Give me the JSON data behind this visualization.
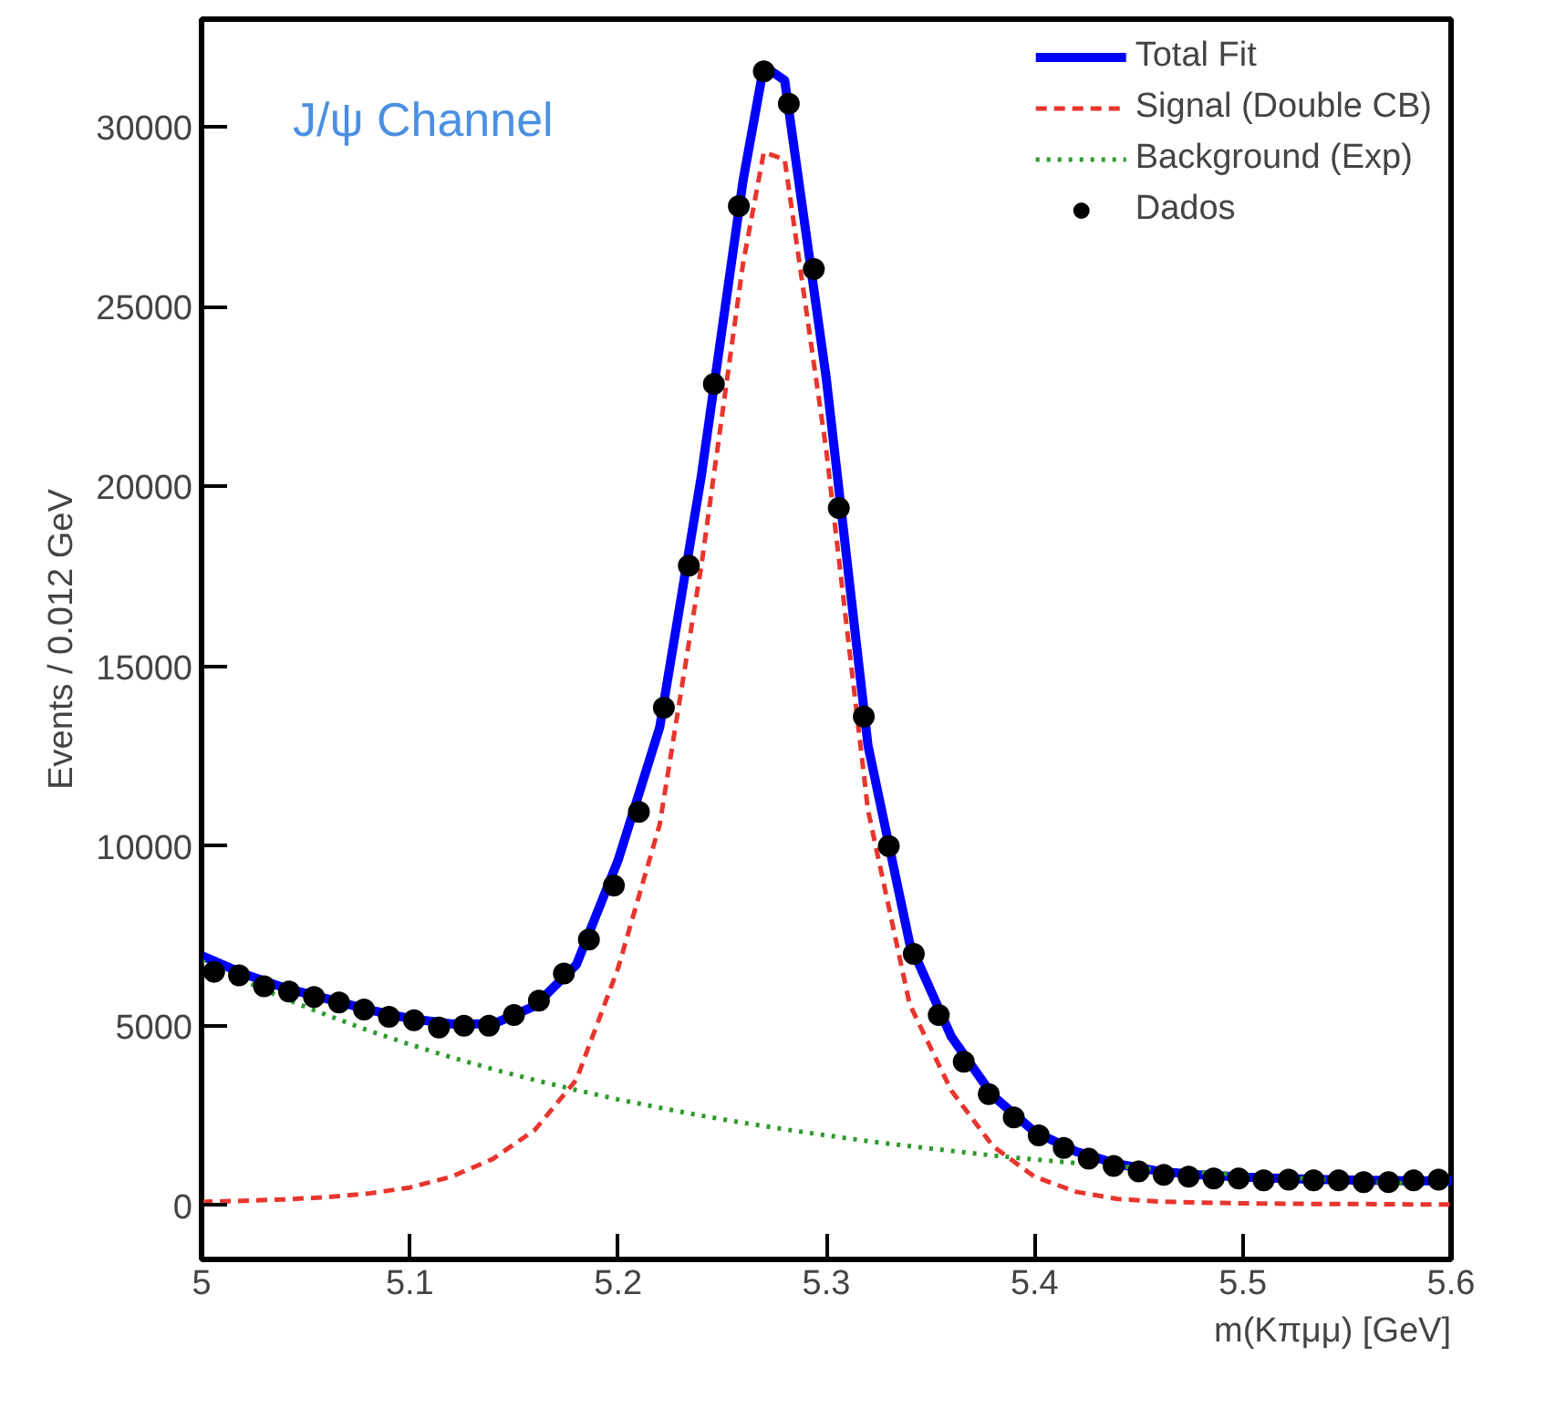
{
  "chart_data": {
    "type": "scatter",
    "xlabel": "m(Kπμμ) [GeV]",
    "ylabel": "Events / 0.012 GeV",
    "annotations": [
      "J/ψ Channel"
    ],
    "xlim": [
      5.0,
      5.6
    ],
    "ylim": [
      -1500,
      33000
    ],
    "xticks": [
      5.0,
      5.1,
      5.2,
      5.3,
      5.4,
      5.5,
      5.6
    ],
    "yticks": [
      0,
      5000,
      10000,
      15000,
      20000,
      25000,
      30000
    ],
    "grid": false,
    "legend": "top right",
    "series": [
      {
        "name": "Total Fit",
        "type": "line",
        "line_style": "solid",
        "color": "#0000ff",
        "x": [
          5.0,
          5.02,
          5.04,
          5.06,
          5.08,
          5.1,
          5.12,
          5.14,
          5.16,
          5.18,
          5.2,
          5.22,
          5.24,
          5.26,
          5.27,
          5.28,
          5.3,
          5.32,
          5.34,
          5.36,
          5.38,
          5.4,
          5.42,
          5.44,
          5.46,
          5.48,
          5.5,
          5.52,
          5.54,
          5.56,
          5.58,
          5.6
        ],
        "values": [
          6950,
          6450,
          6050,
          5750,
          5450,
          5200,
          5050,
          5050,
          5550,
          6700,
          9600,
          13300,
          20300,
          28500,
          31700,
          31300,
          23000,
          12800,
          7300,
          4700,
          3050,
          2050,
          1500,
          1150,
          950,
          850,
          790,
          750,
          720,
          700,
          690,
          680
        ]
      },
      {
        "name": "Signal (Double CB)",
        "type": "line",
        "line_style": "dashed",
        "color": "#e8352e",
        "x": [
          5.0,
          5.02,
          5.04,
          5.06,
          5.08,
          5.1,
          5.12,
          5.14,
          5.16,
          5.18,
          5.2,
          5.22,
          5.24,
          5.26,
          5.27,
          5.28,
          5.3,
          5.32,
          5.34,
          5.36,
          5.38,
          5.4,
          5.42,
          5.44,
          5.46,
          5.48,
          5.5,
          5.52,
          5.54,
          5.56,
          5.58,
          5.6
        ],
        "values": [
          100,
          130,
          170,
          230,
          330,
          500,
          800,
          1300,
          2100,
          3500,
          6600,
          10600,
          17800,
          26200,
          29300,
          29100,
          21000,
          11000,
          5600,
          3200,
          1650,
          800,
          380,
          180,
          110,
          80,
          60,
          50,
          40,
          40,
          30,
          30
        ]
      },
      {
        "name": "Background (Exp)",
        "type": "line",
        "line_style": "dotted",
        "color": "#2e9a2e",
        "x": [
          5.0,
          5.02,
          5.04,
          5.06,
          5.08,
          5.1,
          5.12,
          5.14,
          5.16,
          5.18,
          5.2,
          5.22,
          5.24,
          5.26,
          5.28,
          5.3,
          5.32,
          5.34,
          5.36,
          5.38,
          5.4,
          5.42,
          5.44,
          5.46,
          5.48,
          5.5,
          5.52,
          5.54,
          5.56,
          5.58,
          5.6
        ],
        "values": [
          6800,
          6260,
          5750,
          5300,
          4870,
          4480,
          4120,
          3790,
          3490,
          3210,
          2950,
          2720,
          2500,
          2300,
          2120,
          1950,
          1790,
          1650,
          1520,
          1390,
          1280,
          1180,
          1090,
          1000,
          920,
          850,
          780,
          720,
          660,
          610,
          560
        ]
      },
      {
        "name": "Dados",
        "marker": "circle",
        "color": "#000000",
        "x": [
          5.006,
          5.018,
          5.03,
          5.042,
          5.054,
          5.066,
          5.078,
          5.09,
          5.102,
          5.114,
          5.126,
          5.138,
          5.15,
          5.162,
          5.174,
          5.186,
          5.198,
          5.21,
          5.222,
          5.234,
          5.246,
          5.258,
          5.27,
          5.282,
          5.294,
          5.306,
          5.318,
          5.33,
          5.342,
          5.354,
          5.366,
          5.378,
          5.39,
          5.402,
          5.414,
          5.426,
          5.438,
          5.45,
          5.462,
          5.474,
          5.486,
          5.498,
          5.51,
          5.522,
          5.534,
          5.546,
          5.558,
          5.57,
          5.582,
          5.594
        ],
        "values": [
          6500,
          6400,
          6100,
          5950,
          5800,
          5650,
          5450,
          5250,
          5150,
          4950,
          5000,
          5000,
          5300,
          5700,
          6450,
          7400,
          8900,
          10950,
          13850,
          17800,
          22850,
          27800,
          31550,
          30650,
          26050,
          19400,
          13600,
          10000,
          7000,
          5300,
          4000,
          3100,
          2450,
          1950,
          1600,
          1300,
          1100,
          950,
          850,
          800,
          750,
          750,
          700,
          720,
          700,
          700,
          650,
          650,
          700,
          720
        ]
      }
    ]
  }
}
